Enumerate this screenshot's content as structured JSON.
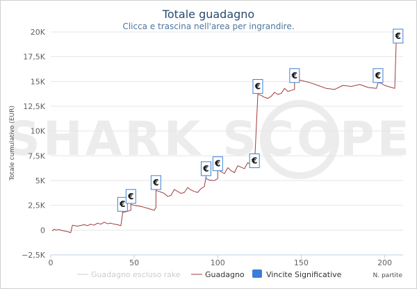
{
  "chart_data": {
    "type": "line",
    "title": "Totale guadagno",
    "subtitle": "Clicca e trascina nell'area per ingrandire.",
    "xlabel": "N. partite",
    "ylabel": "Totale cumulativo (EUR)",
    "xlim": [
      0,
      211
    ],
    "ylim": [
      -2500,
      20000
    ],
    "x_ticks": [
      0,
      50,
      100,
      150,
      200
    ],
    "y_ticks": [
      -2500,
      0,
      2500,
      5000,
      7500,
      10000,
      12500,
      15000,
      17500,
      20000
    ],
    "y_tick_labels": [
      "−2,5K",
      "0",
      "2,5K",
      "5K",
      "7,5K",
      "10K",
      "12,5K",
      "15K",
      "17,5K",
      "20K"
    ],
    "grid": "horizontal",
    "legend_position": "bottom",
    "watermark": "SHARK SCOPE",
    "series": [
      {
        "name": "Guadagno escluso rake",
        "color": "#cccccc",
        "visible": false,
        "x": [],
        "y": []
      },
      {
        "name": "Guadagno",
        "color": "#a0393a",
        "x": [
          1,
          2,
          3,
          5,
          7,
          10,
          12,
          13,
          16,
          20,
          22,
          24,
          26,
          28,
          30,
          32,
          34,
          36,
          38,
          40,
          42,
          43,
          43,
          45,
          48,
          48,
          50,
          52,
          55,
          58,
          60,
          62,
          63,
          63,
          65,
          68,
          70,
          72,
          74,
          76,
          78,
          80,
          82,
          84,
          86,
          88,
          90,
          92,
          93,
          93,
          95,
          98,
          100,
          100,
          102,
          104,
          106,
          108,
          110,
          112,
          114,
          116,
          118,
          120,
          122,
          122,
          124,
          126,
          128,
          130,
          132,
          134,
          136,
          138,
          140,
          142,
          144,
          146,
          146,
          148,
          150,
          155,
          160,
          165,
          170,
          175,
          180,
          185,
          190,
          195,
          196,
          198,
          200,
          202,
          204,
          206,
          207,
          208,
          209,
          210
        ],
        "y": [
          -100,
          100,
          0,
          50,
          -50,
          -150,
          -250,
          500,
          400,
          550,
          450,
          600,
          500,
          700,
          600,
          800,
          650,
          700,
          600,
          550,
          450,
          1600,
          1800,
          1850,
          2000,
          2600,
          2500,
          2450,
          2350,
          2200,
          2100,
          2000,
          2300,
          4000,
          3900,
          3700,
          3400,
          3500,
          4100,
          3900,
          3700,
          3800,
          4300,
          4050,
          3900,
          3800,
          4200,
          4400,
          5400,
          5200,
          5050,
          5000,
          5200,
          6100,
          5900,
          5700,
          6300,
          6000,
          5800,
          6500,
          6350,
          6200,
          6800,
          6600,
          6400,
          6300,
          13700,
          13600,
          13400,
          13300,
          13500,
          13900,
          13700,
          13800,
          14300,
          14000,
          14100,
          14200,
          14900,
          15200,
          15100,
          14900,
          14600,
          14300,
          14200,
          14600,
          14500,
          14700,
          14400,
          14300,
          14900,
          14800,
          14600,
          14500,
          14400,
          14300,
          19700,
          19500,
          19600,
          19800
        ]
      }
    ],
    "significant_wins": {
      "name": "Vincite Significative",
      "color": "#3a7fd5",
      "label": "€",
      "x": [
        43,
        48,
        63,
        93,
        100,
        122,
        124,
        146,
        196,
        208
      ],
      "y": [
        2600,
        3400,
        4800,
        6200,
        6700,
        7000,
        14500,
        15600,
        15600,
        20300
      ]
    }
  }
}
